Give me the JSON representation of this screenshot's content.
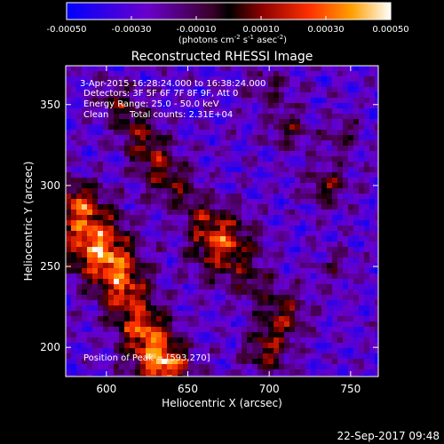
{
  "chart_data": {
    "type": "heatmap",
    "title": "Reconstructed RHESSI Image",
    "xlabel": "Heliocentric X (arcsec)",
    "ylabel": "Heliocentric Y (arcsec)",
    "xlim": [
      575,
      767
    ],
    "ylim": [
      182,
      374
    ],
    "x_ticks": [
      "600",
      "650",
      "700",
      "750"
    ],
    "x_tick_values": [
      600,
      650,
      700,
      750
    ],
    "y_ticks": [
      "200",
      "250",
      "300",
      "350"
    ],
    "y_tick_values": [
      200,
      250,
      300,
      350
    ],
    "colorbar": {
      "min": -0.0005,
      "max": 0.0005,
      "ticks": [
        "-0.00050",
        "-0.00030",
        "-0.00010",
        "0.00010",
        "0.00030",
        "0.00050"
      ],
      "tick_values": [
        -0.0005,
        -0.0003,
        -0.0001,
        0.0001,
        0.0003,
        0.0005
      ],
      "unit_label": "(photons cm-2 s-1 asec-2)"
    },
    "annotations": {
      "time_range": "3-Apr-2015 16:28:24.000 to 16:38:24.000",
      "detectors": "Detectors: 3F 5F 6F 7F 8F 9F, Att 0",
      "energy": "Energy Range: 25.0 - 50.0 keV",
      "method": "Clean",
      "counts": "Total counts: 2.31E+04",
      "peak": "Position of Peak = [593,270]"
    },
    "sources": [
      {
        "x": 590,
        "y": 268,
        "sigma": 14,
        "amp": 0.00052
      },
      {
        "x": 604,
        "y": 250,
        "sigma": 12,
        "amp": 0.0004
      },
      {
        "x": 582,
        "y": 290,
        "sigma": 10,
        "amp": 0.00035
      },
      {
        "x": 612,
        "y": 232,
        "sigma": 11,
        "amp": 0.00033
      },
      {
        "x": 622,
        "y": 212,
        "sigma": 11,
        "amp": 0.0004
      },
      {
        "x": 630,
        "y": 194,
        "sigma": 11,
        "amp": 0.00045
      },
      {
        "x": 640,
        "y": 186,
        "sigma": 9,
        "amp": 0.00035
      },
      {
        "x": 672,
        "y": 262,
        "sigma": 14,
        "amp": 0.00047
      },
      {
        "x": 660,
        "y": 280,
        "sigma": 9,
        "amp": 0.00022
      },
      {
        "x": 640,
        "y": 300,
        "sigma": 10,
        "amp": 0.0003
      },
      {
        "x": 628,
        "y": 318,
        "sigma": 9,
        "amp": 0.00032
      },
      {
        "x": 618,
        "y": 336,
        "sigma": 9,
        "amp": 0.0003
      },
      {
        "x": 606,
        "y": 352,
        "sigma": 8,
        "amp": 0.00025
      },
      {
        "x": 700,
        "y": 360,
        "sigma": 9,
        "amp": 0.0002
      },
      {
        "x": 712,
        "y": 335,
        "sigma": 9,
        "amp": 0.00022
      },
      {
        "x": 735,
        "y": 300,
        "sigma": 9,
        "amp": 0.0003
      },
      {
        "x": 745,
        "y": 330,
        "sigma": 8,
        "amp": 0.0002
      },
      {
        "x": 708,
        "y": 220,
        "sigma": 11,
        "amp": 0.00033
      },
      {
        "x": 698,
        "y": 196,
        "sigma": 10,
        "amp": 0.0003
      },
      {
        "x": 690,
        "y": 240,
        "sigma": 8,
        "amp": 0.00018
      },
      {
        "x": 740,
        "y": 250,
        "sigma": 8,
        "amp": 0.00015
      }
    ]
  },
  "footer": {
    "date": "22-Sep-2017 09:48"
  }
}
